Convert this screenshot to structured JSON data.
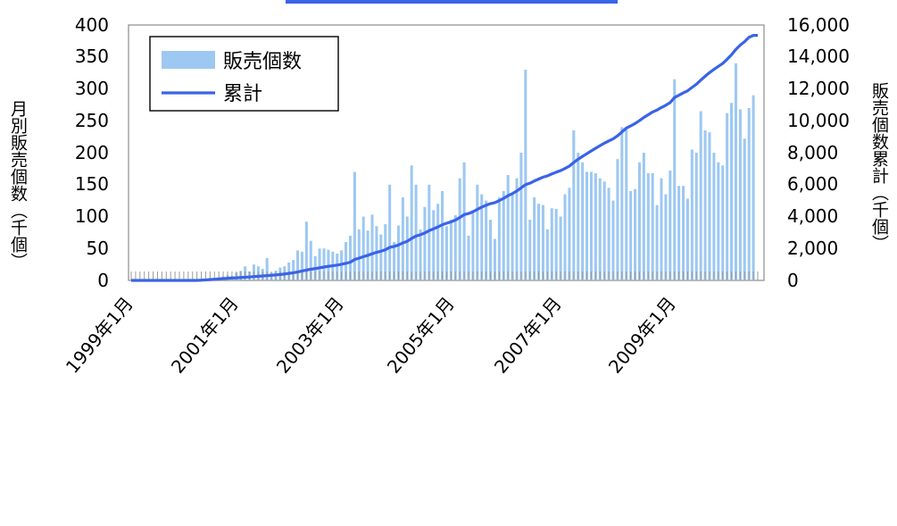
{
  "chart_data": {
    "type": "bar",
    "title": "",
    "x_range": [
      "1999-01",
      "2010-12"
    ],
    "xtick_labels": [
      "1999年1月",
      "2001年1月",
      "2003年1月",
      "2005年1月",
      "2007年1月",
      "2009年1月"
    ],
    "y_left": {
      "label": "月別販売個数（千個）",
      "range": [
        0,
        400
      ],
      "ticks": [
        "0",
        "50",
        "100",
        "150",
        "200",
        "250",
        "300",
        "350",
        "400"
      ]
    },
    "y_right": {
      "label": "販売個数累計（千個）",
      "range": [
        0,
        16000
      ],
      "ticks": [
        "0",
        "2,000",
        "4,000",
        "6,000",
        "8,000",
        "10,000",
        "12,000",
        "14,000",
        "16,000"
      ]
    },
    "legend": {
      "placement": "top-left"
    },
    "series": [
      {
        "name": "販売個数",
        "kind": "bar",
        "axis": "left",
        "color": "#9dc8f2",
        "values": [
          0,
          0,
          0,
          0,
          0,
          0,
          0,
          0,
          0,
          0,
          0,
          0,
          0,
          0,
          0,
          0,
          2,
          3,
          4,
          3,
          5,
          6,
          8,
          7,
          12,
          15,
          22,
          14,
          25,
          22,
          18,
          35,
          12,
          15,
          20,
          22,
          28,
          32,
          47,
          45,
          92,
          62,
          38,
          50,
          50,
          48,
          45,
          42,
          47,
          60,
          70,
          170,
          80,
          100,
          78,
          103,
          85,
          72,
          88,
          150,
          60,
          86,
          130,
          100,
          180,
          150,
          80,
          115,
          150,
          110,
          120,
          140,
          85,
          95,
          102,
          160,
          185,
          70,
          110,
          150,
          135,
          125,
          95,
          65,
          130,
          140,
          165,
          135,
          160,
          200,
          330,
          95,
          130,
          120,
          118,
          80,
          113,
          112,
          100,
          135,
          145,
          235,
          200,
          185,
          170,
          170,
          168,
          160,
          155,
          145,
          125,
          190,
          240,
          238,
          140,
          143,
          185,
          200,
          168,
          168,
          118,
          160,
          135,
          172,
          315,
          148,
          148,
          128,
          205,
          200,
          265,
          235,
          232,
          200,
          185,
          180,
          262,
          278,
          340,
          268,
          222,
          270,
          290,
          0
        ]
      },
      {
        "name": "累計",
        "kind": "line",
        "axis": "right",
        "color": "#3a63e8",
        "values": [
          0,
          0,
          0,
          0,
          0,
          0,
          0,
          0,
          0,
          0,
          0,
          0,
          0,
          0,
          0,
          0,
          15,
          30,
          50,
          70,
          90,
          110,
          130,
          150,
          160,
          180,
          200,
          215,
          240,
          260,
          280,
          300,
          320,
          345,
          370,
          400,
          440,
          480,
          530,
          590,
          650,
          700,
          740,
          790,
          840,
          880,
          920,
          960,
          1010,
          1070,
          1140,
          1310,
          1390,
          1490,
          1570,
          1670,
          1760,
          1830,
          1920,
          2070,
          2130,
          2220,
          2350,
          2450,
          2630,
          2780,
          2860,
          2970,
          3120,
          3230,
          3350,
          3490,
          3580,
          3670,
          3780,
          3940,
          4120,
          4190,
          4300,
          4450,
          4590,
          4710,
          4810,
          4870,
          5000,
          5140,
          5310,
          5440,
          5600,
          5800,
          6000,
          6090,
          6230,
          6350,
          6470,
          6550,
          6670,
          6780,
          6880,
          7010,
          7160,
          7390,
          7590,
          7770,
          7940,
          8110,
          8280,
          8440,
          8600,
          8740,
          8870,
          9060,
          9300,
          9540,
          9680,
          9830,
          10010,
          10210,
          10380,
          10550,
          10670,
          10830,
          10970,
          11140,
          11460,
          11600,
          11750,
          11880,
          12090,
          12290,
          12550,
          12790,
          13020,
          13220,
          13410,
          13590,
          13850,
          14130,
          14470,
          14740,
          14960,
          15230,
          15350,
          15350
        ]
      }
    ]
  }
}
